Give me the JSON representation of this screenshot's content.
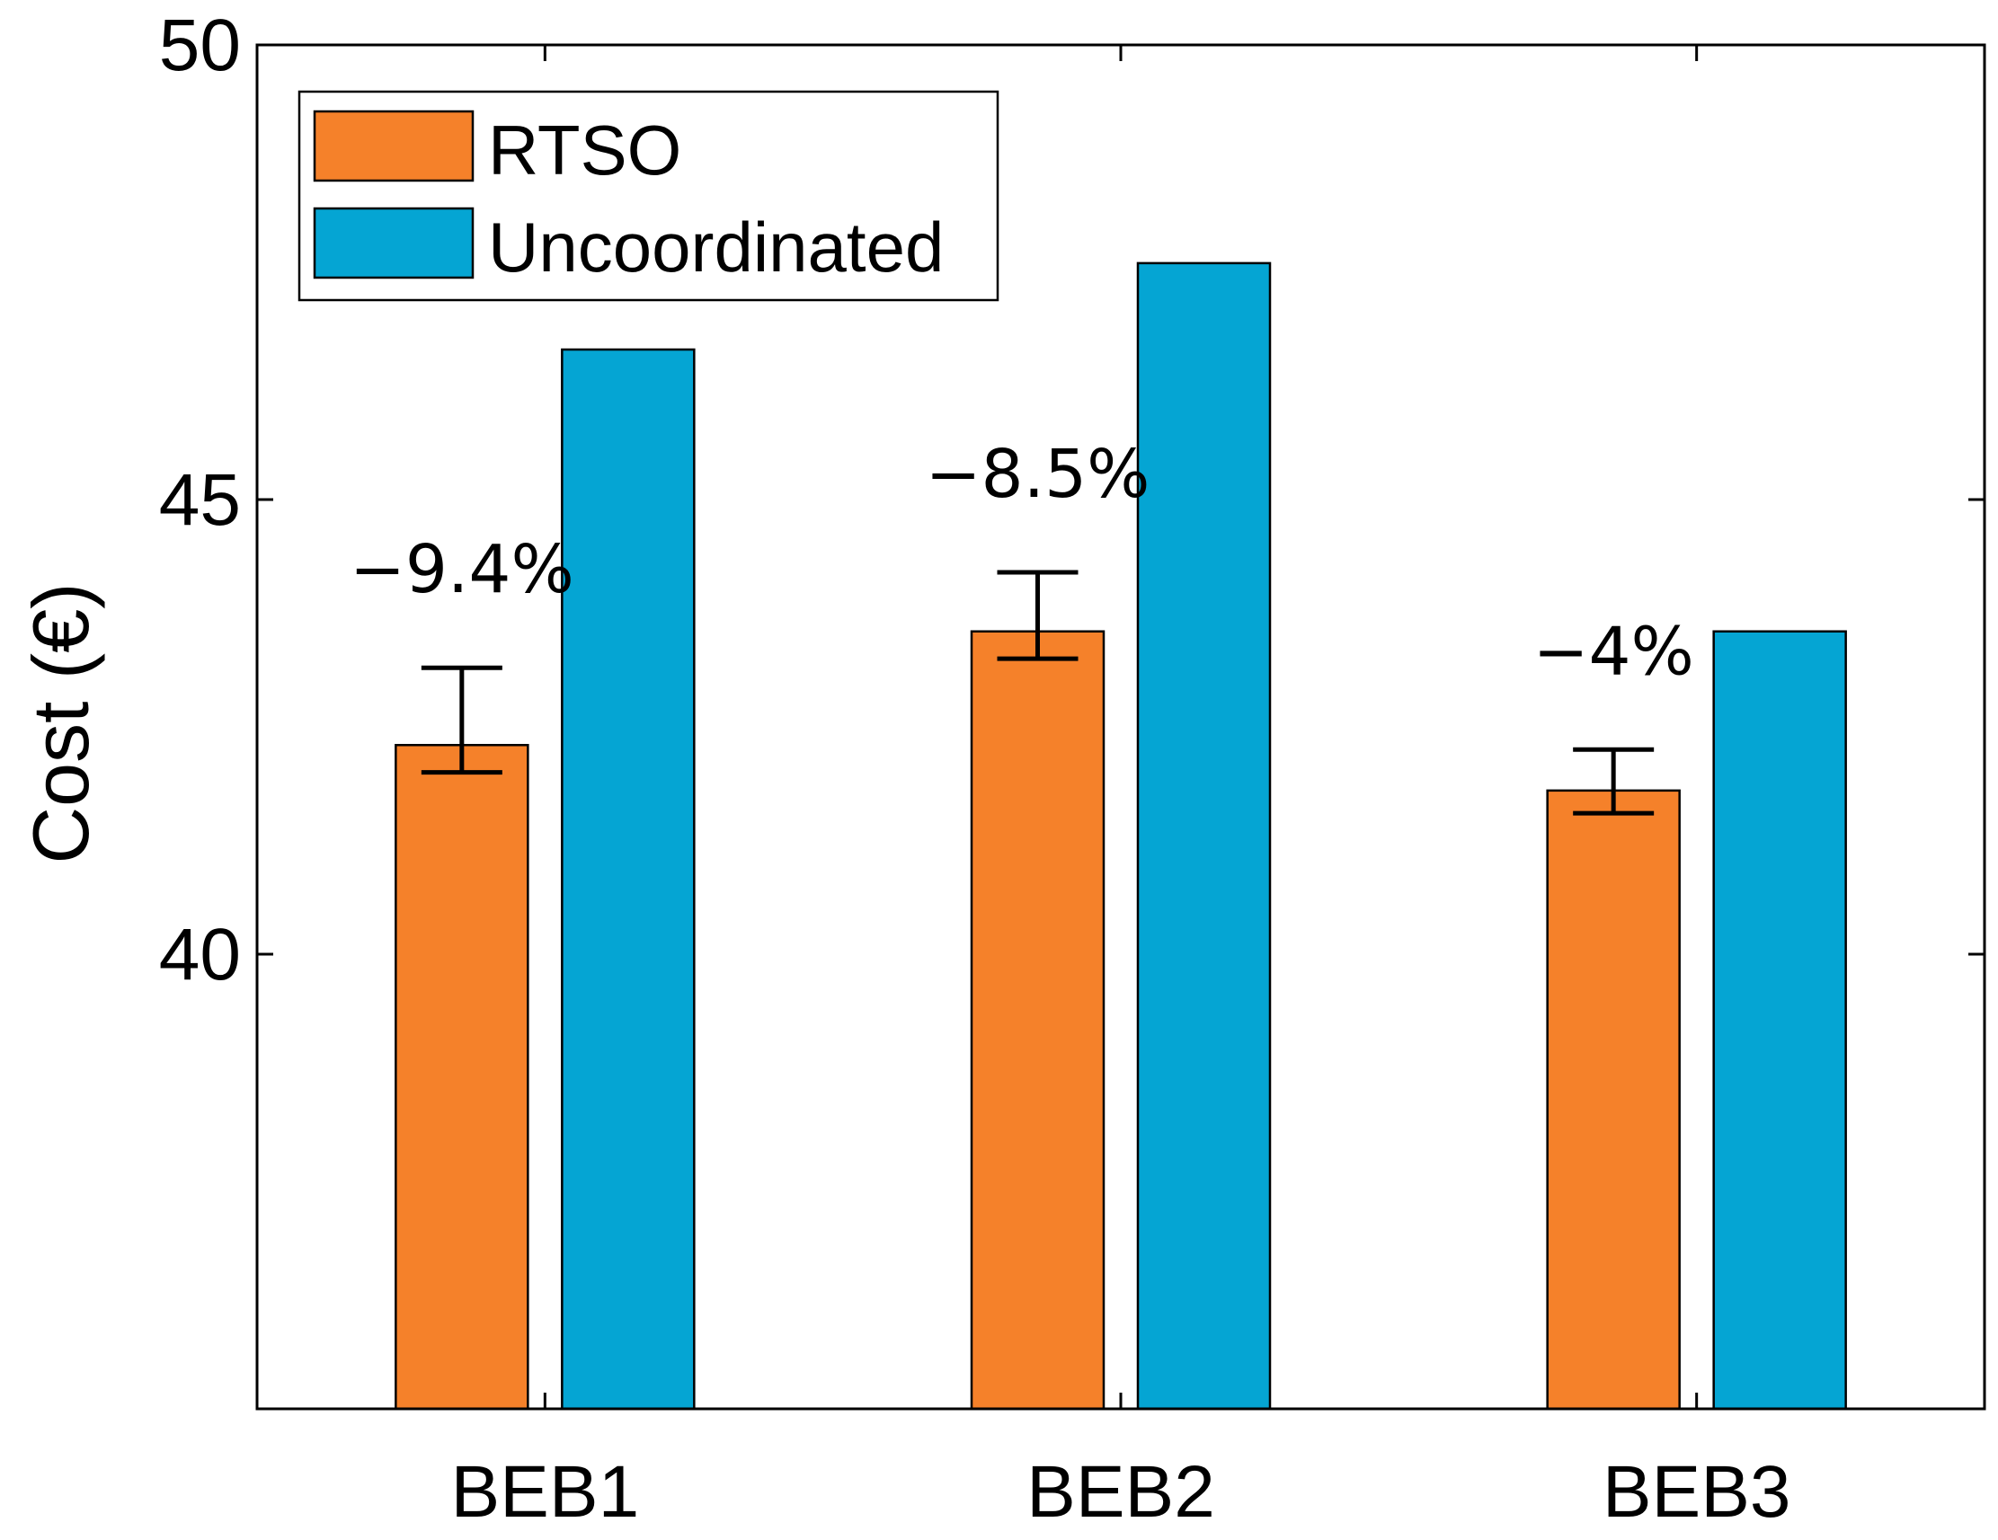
{
  "chart_data": {
    "type": "bar",
    "title": "",
    "xlabel": "",
    "ylabel": "Cost (€)",
    "ylim": [
      35,
      50
    ],
    "yticks": [
      40,
      45,
      50
    ],
    "categories": [
      "BEB1",
      "BEB2",
      "BEB3"
    ],
    "series": [
      {
        "name": "RTSO",
        "color": "#f5812a",
        "values": [
          42.3,
          43.55,
          41.8
        ],
        "error_low": [
          42.0,
          43.25,
          41.55
        ],
        "error_high": [
          43.15,
          44.2,
          42.25
        ]
      },
      {
        "name": "Uncoordinated",
        "color": "#05a5d3",
        "values": [
          46.65,
          47.6,
          43.55
        ]
      }
    ],
    "annotations": [
      "−9.4%",
      "−8.5%",
      "−4%"
    ],
    "legend_position": "top-left",
    "grid": false
  }
}
